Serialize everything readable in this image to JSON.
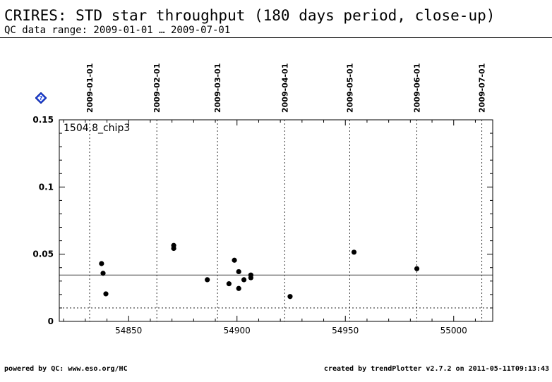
{
  "header": {
    "title": "CRIRES: STD star throughput (180 days period, close-up)",
    "subtitle": "QC data range: 2009-01-01 … 2009-07-01"
  },
  "help_icon": "help-question-diamond-icon",
  "footer": {
    "left": "powered by QC: www.eso.org/HC",
    "right": "created by trendPlotter v2.7.2 on 2011-05-11T09:13:43"
  },
  "chart_data": {
    "type": "scatter",
    "panel_label": "1504.8_chip3",
    "xlim": [
      54818,
      55018
    ],
    "ylim": [
      0,
      0.15
    ],
    "x_ticks": [
      54850,
      54900,
      54950,
      55000
    ],
    "y_ticks": [
      0,
      0.05,
      0.1,
      0.15
    ],
    "y_tick_labels": [
      "0",
      "0.05",
      "0.1",
      "0.15"
    ],
    "date_markers": [
      {
        "label": "2009-01-01",
        "mjd": 54832
      },
      {
        "label": "2009-02-01",
        "mjd": 54863
      },
      {
        "label": "2009-03-01",
        "mjd": 54891
      },
      {
        "label": "2009-04-01",
        "mjd": 54922
      },
      {
        "label": "2009-05-01",
        "mjd": 54952
      },
      {
        "label": "2009-06-01",
        "mjd": 54983
      },
      {
        "label": "2009-07-01",
        "mjd": 55013
      }
    ],
    "reference_line": 0.0345,
    "threshold_line": 0.01,
    "points": [
      {
        "x": 54837.5,
        "y": 0.043
      },
      {
        "x": 54838.2,
        "y": 0.0358
      },
      {
        "x": 54839.5,
        "y": 0.0205
      },
      {
        "x": 54870.8,
        "y": 0.0565
      },
      {
        "x": 54870.8,
        "y": 0.0543
      },
      {
        "x": 54886.3,
        "y": 0.031
      },
      {
        "x": 54896.3,
        "y": 0.028
      },
      {
        "x": 54898.8,
        "y": 0.0455
      },
      {
        "x": 54900.8,
        "y": 0.037
      },
      {
        "x": 54900.8,
        "y": 0.0245
      },
      {
        "x": 54903.2,
        "y": 0.031
      },
      {
        "x": 54906.4,
        "y": 0.0345
      },
      {
        "x": 54906.4,
        "y": 0.0325
      },
      {
        "x": 54924.5,
        "y": 0.0185
      },
      {
        "x": 54954.0,
        "y": 0.0515
      },
      {
        "x": 54983.0,
        "y": 0.0392
      }
    ]
  }
}
